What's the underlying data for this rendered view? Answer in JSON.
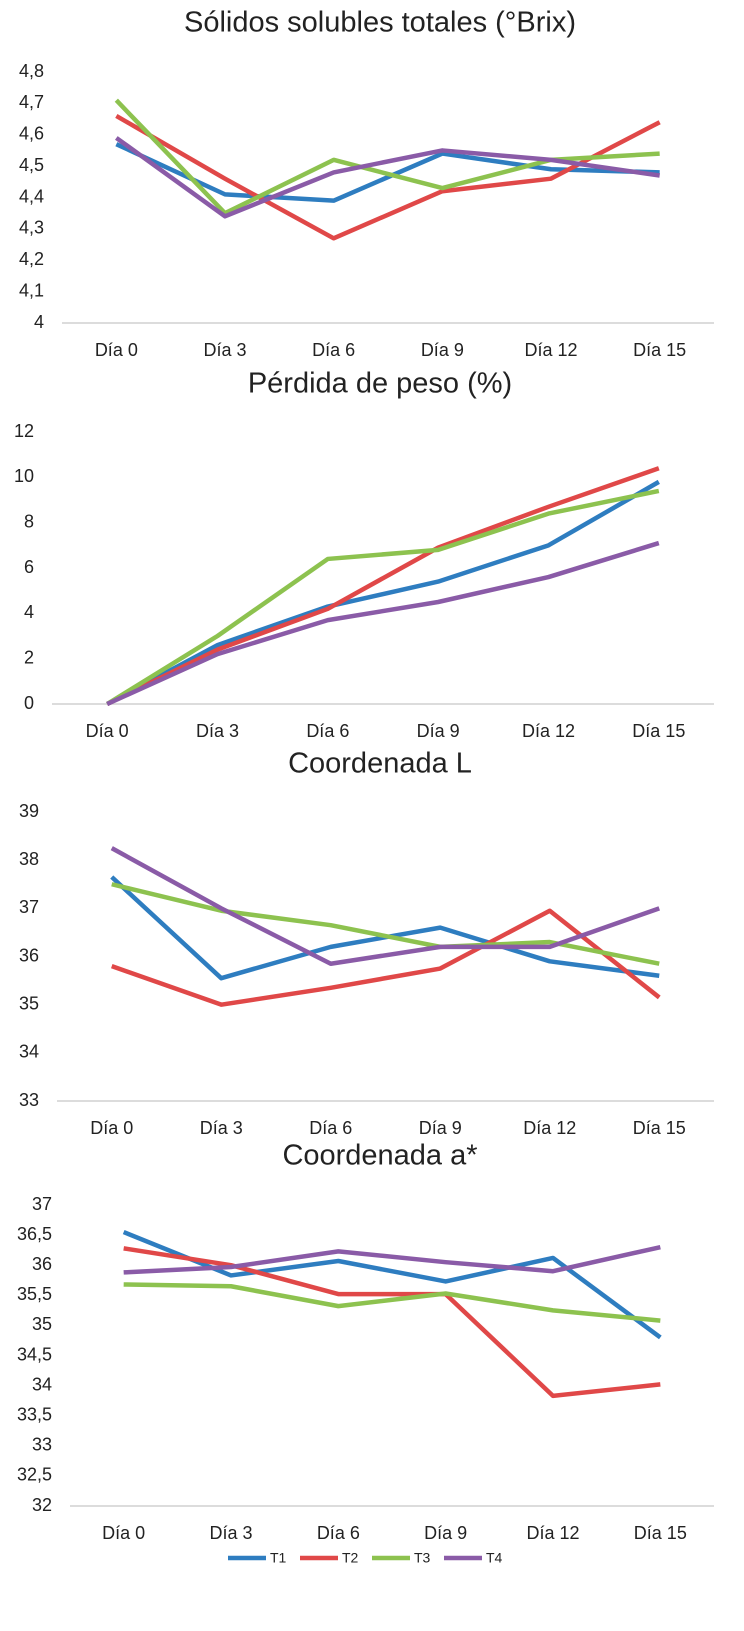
{
  "chart_data": [
    {
      "type": "line",
      "title": "Sólidos solubles totales (°Brix)",
      "categories": [
        "Día 0",
        "Día 3",
        "Día 6",
        "Día 9",
        "Día 12",
        "Día 15"
      ],
      "ylim": [
        4,
        4.8
      ],
      "yticks": [
        4,
        {
          "value": 4.1,
          "label": "4,1"
        },
        {
          "value": 4.2,
          "label": "4,2"
        },
        {
          "value": 4.3,
          "label": "4,3"
        },
        {
          "value": 4.4,
          "label": "4,4"
        },
        {
          "value": 4.5,
          "label": "4,5"
        },
        {
          "value": 4.6,
          "label": "4,6"
        },
        {
          "value": 4.7,
          "label": "4,7"
        },
        {
          "value": 4.8,
          "label": "4,8"
        }
      ],
      "grid": false,
      "series": [
        {
          "color": "#2e7dc0",
          "values": [
            4.57,
            4.41,
            4.39,
            4.54,
            4.49,
            4.48
          ]
        },
        {
          "color": "#e04848",
          "values": [
            4.66,
            4.46,
            4.27,
            4.42,
            4.46,
            4.64
          ]
        },
        {
          "color": "#8dc24f",
          "values": [
            4.71,
            4.35,
            4.52,
            4.43,
            4.52,
            4.54
          ]
        },
        {
          "color": "#8a5ba7",
          "values": [
            4.59,
            4.34,
            4.48,
            4.55,
            4.52,
            4.47
          ]
        }
      ]
    },
    {
      "type": "line",
      "title": "Pérdida de peso (%)",
      "categories": [
        "Día 0",
        "Día 3",
        "Día 6",
        "Día 9",
        "Día 12",
        "Día 15"
      ],
      "ylim": [
        0,
        12
      ],
      "yticks": [
        0,
        2,
        4,
        6,
        8,
        10,
        12
      ],
      "grid": false,
      "series": [
        {
          "color": "#2e7dc0",
          "values": [
            0,
            2.6,
            4.3,
            5.4,
            7.0,
            9.8
          ]
        },
        {
          "color": "#e04848",
          "values": [
            0,
            2.4,
            4.2,
            6.9,
            8.7,
            10.4
          ]
        },
        {
          "color": "#8dc24f",
          "values": [
            0,
            3.0,
            6.4,
            6.8,
            8.4,
            9.4
          ]
        },
        {
          "color": "#8a5ba7",
          "values": [
            0,
            2.2,
            3.7,
            4.5,
            5.6,
            7.1
          ]
        }
      ]
    },
    {
      "type": "line",
      "title": "Coordenada L",
      "categories": [
        "Día 0",
        "Día 3",
        "Día 6",
        "Día 9",
        "Día 12",
        "Día 15"
      ],
      "ylim": [
        33,
        39
      ],
      "yticks": [
        33,
        34,
        35,
        36,
        37,
        38,
        39
      ],
      "grid": false,
      "series": [
        {
          "color": "#2e7dc0",
          "values": [
            37.65,
            35.55,
            36.2,
            36.6,
            35.9,
            35.6
          ]
        },
        {
          "color": "#e04848",
          "values": [
            35.8,
            35.0,
            35.35,
            35.75,
            36.95,
            35.15
          ]
        },
        {
          "color": "#8dc24f",
          "values": [
            37.5,
            36.95,
            36.65,
            36.2,
            36.3,
            35.85
          ]
        },
        {
          "color": "#8a5ba7",
          "values": [
            38.25,
            37.0,
            35.85,
            36.2,
            36.2,
            37.0
          ]
        }
      ]
    },
    {
      "type": "line",
      "title": "Coordenada a*",
      "categories": [
        "Día 0",
        "Día 3",
        "Día 6",
        "Día 9",
        "Día 12",
        "Día 15"
      ],
      "ylim": [
        32,
        37
      ],
      "yticks": [
        32,
        {
          "value": 32.5,
          "label": "32,5"
        },
        33,
        {
          "value": 33.5,
          "label": "33,5"
        },
        34,
        {
          "value": 34.5,
          "label": "34,5"
        },
        35,
        {
          "value": 35.5,
          "label": "35,5"
        },
        36,
        {
          "value": 36.5,
          "label": "36,5"
        },
        37
      ],
      "grid": false,
      "legend": "bottom",
      "series": [
        {
          "name": "T1",
          "color": "#2e7dc0",
          "values": [
            36.55,
            35.83,
            36.07,
            35.73,
            36.12,
            34.8
          ]
        },
        {
          "name": "T2",
          "color": "#e04848",
          "values": [
            36.28,
            36.0,
            35.52,
            35.52,
            33.83,
            34.02
          ]
        },
        {
          "name": "T3",
          "color": "#8dc24f",
          "values": [
            35.68,
            35.65,
            35.32,
            35.53,
            35.25,
            35.08
          ]
        },
        {
          "name": "T4",
          "color": "#8a5ba7",
          "values": [
            35.88,
            35.97,
            36.23,
            36.05,
            35.9,
            36.3
          ]
        }
      ]
    }
  ]
}
